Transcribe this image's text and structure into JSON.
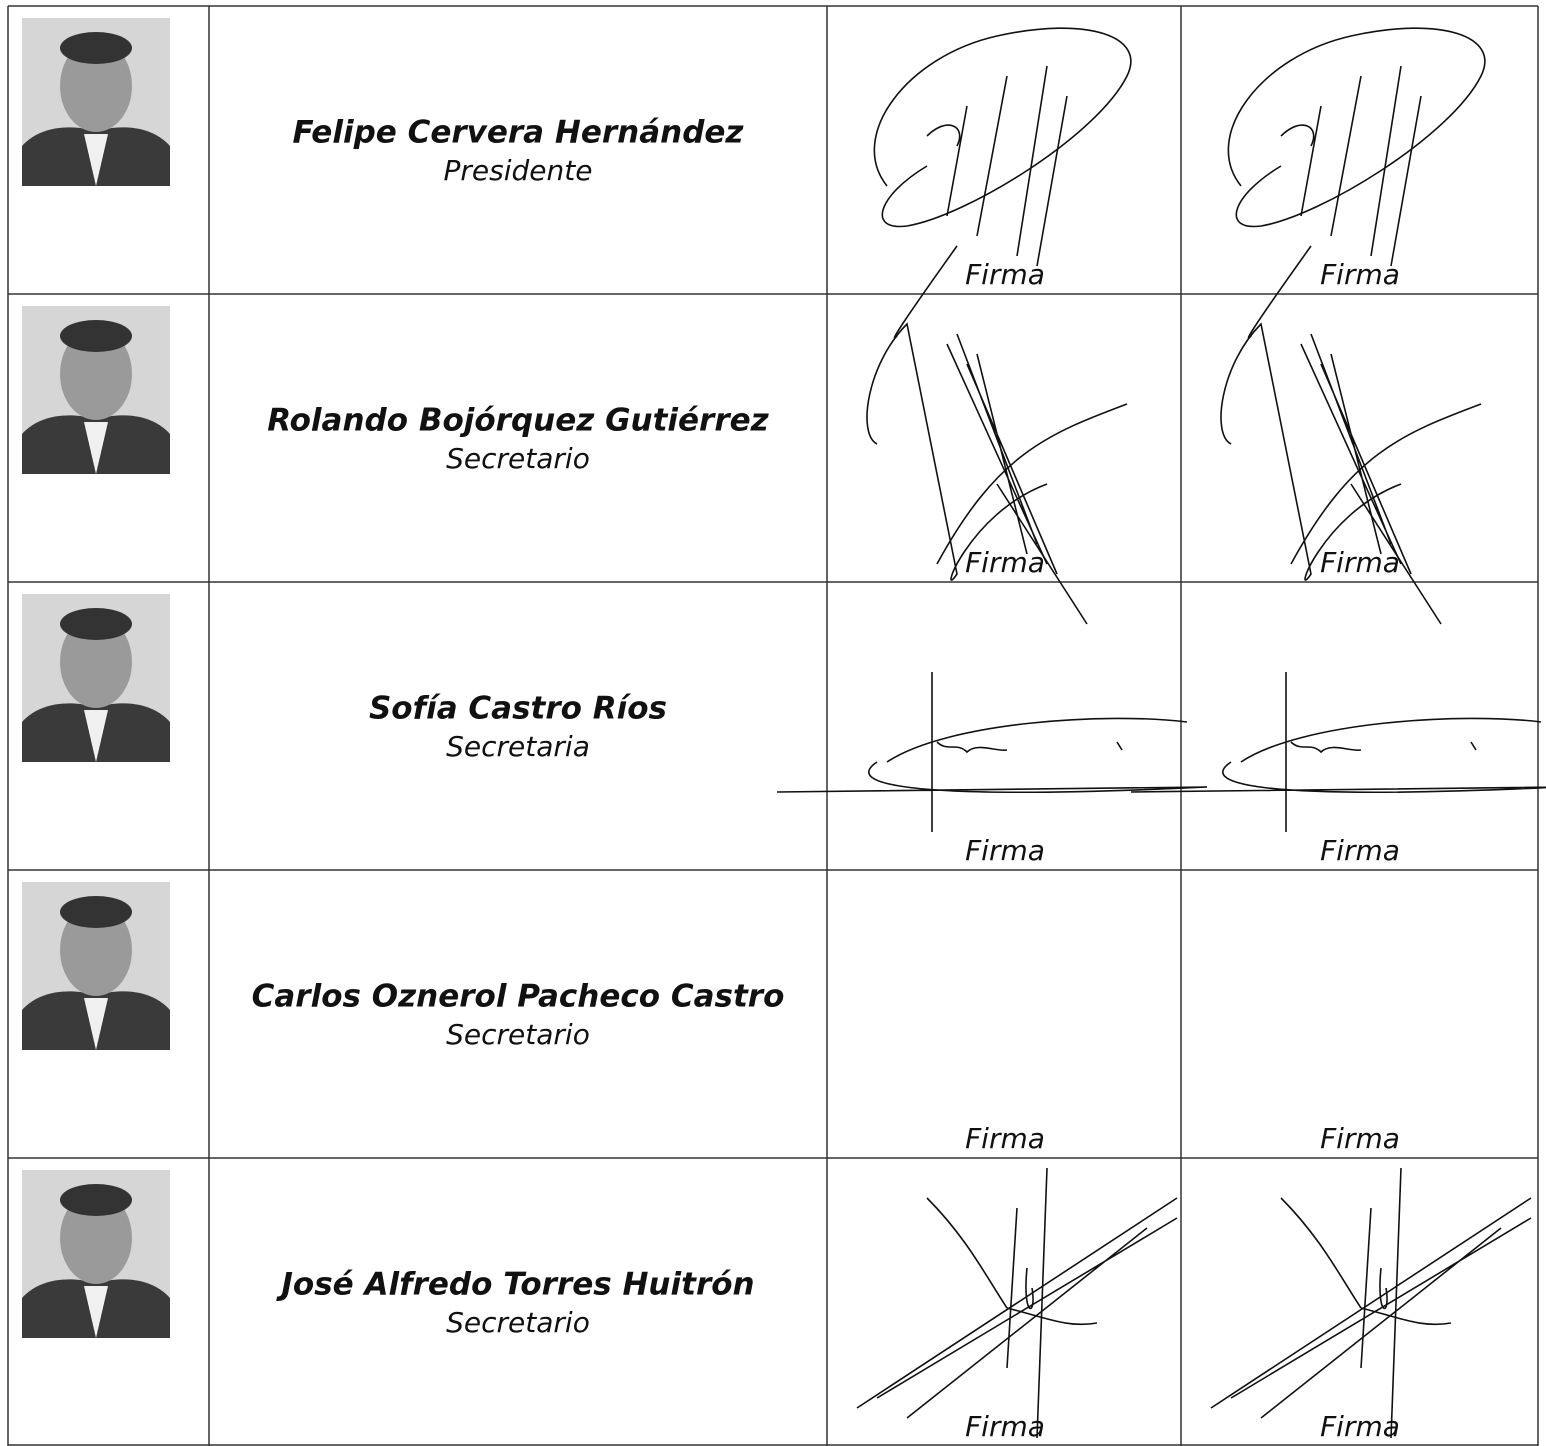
{
  "table": {
    "rows": [
      {
        "name": "Felipe Cervera Hernández",
        "role": "Presidente",
        "signature_labels": [
          "Firma",
          "Firma"
        ]
      },
      {
        "name": "Rolando Bojórquez Gutiérrez",
        "role": "Secretario",
        "signature_labels": [
          "Firma",
          "Firma"
        ]
      },
      {
        "name": "Sofía Castro Ríos",
        "role": "Secretaria",
        "signature_labels": [
          "Firma",
          "Firma"
        ]
      },
      {
        "name": "Carlos Oznerol Pacheco Castro",
        "role": "Secretario",
        "signature_labels": [
          "Firma",
          "Firma"
        ]
      },
      {
        "name": "José Alfredo Torres Huitrón",
        "role": "Secretario",
        "signature_labels": [
          "Firma",
          "Firma"
        ]
      }
    ]
  }
}
